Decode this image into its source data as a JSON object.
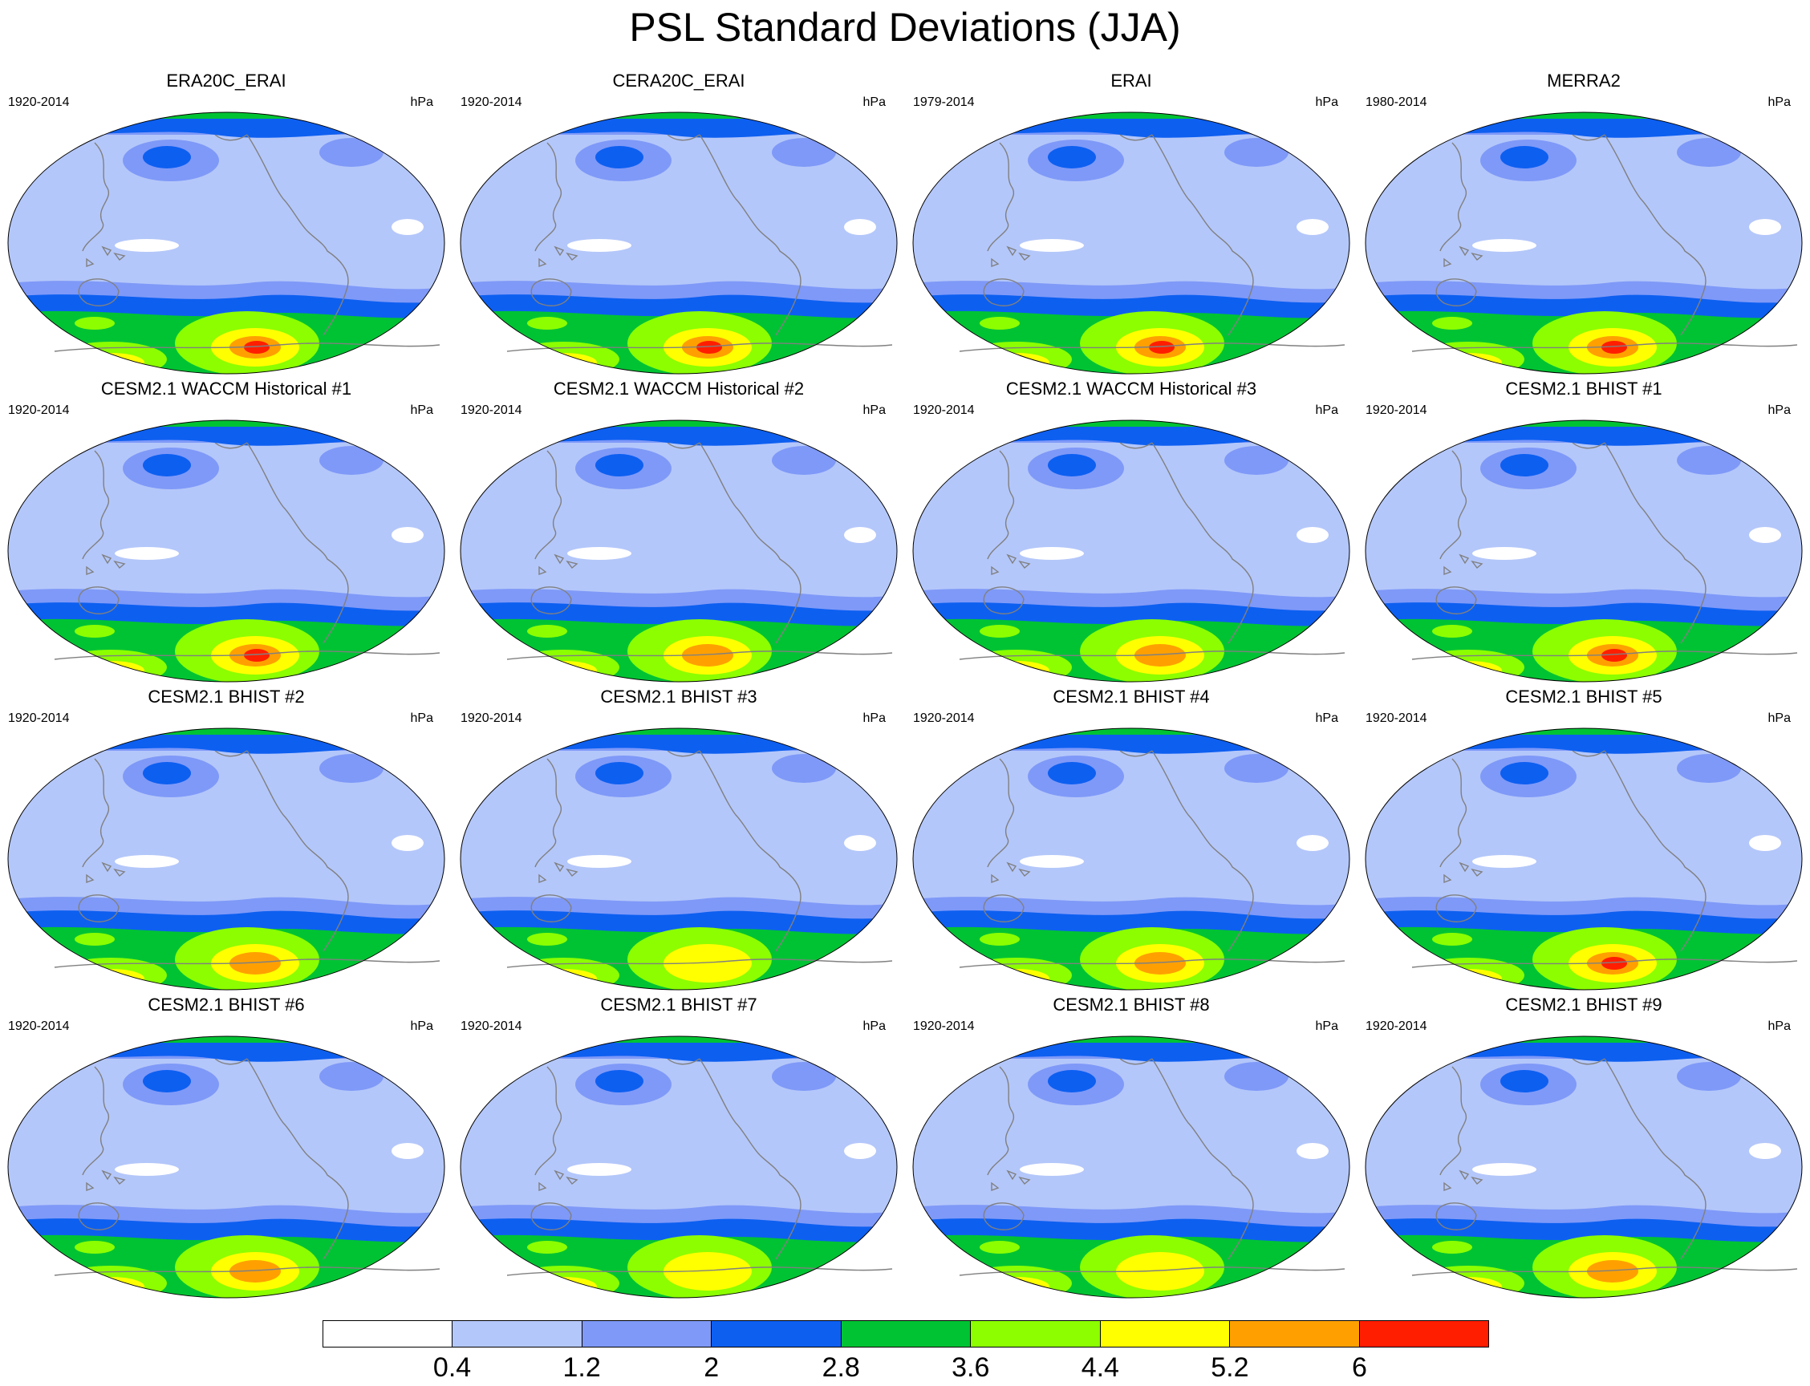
{
  "title": "PSL Standard Deviations (JJA)",
  "colors": {
    "levels": [
      "#ffffff",
      "#b4c7fa",
      "#7f99f8",
      "#0d5ff0",
      "#00c334",
      "#8cfe00",
      "#ffff00",
      "#ffa000",
      "#ff1e00"
    ],
    "coast": "#808080"
  },
  "colorbar": {
    "labels": [
      "0.4",
      "1.2",
      "2",
      "2.8",
      "3.6",
      "4.4",
      "5.2",
      "6"
    ]
  },
  "panels": [
    {
      "title": "ERA20C_ERAI",
      "years": "1920-2014",
      "units": "hPa",
      "peak": 8,
      "arctic": 4
    },
    {
      "title": "CERA20C_ERAI",
      "years": "1920-2014",
      "units": "hPa",
      "peak": 8,
      "arctic": 4
    },
    {
      "title": "ERAI",
      "years": "1979-2014",
      "units": "hPa",
      "peak": 8,
      "arctic": 4
    },
    {
      "title": "MERRA2",
      "years": "1980-2014",
      "units": "hPa",
      "peak": 8,
      "arctic": 4
    },
    {
      "title": "CESM2.1 WACCM Historical #1",
      "years": "1920-2014",
      "units": "hPa",
      "peak": 8,
      "arctic": 4
    },
    {
      "title": "CESM2.1 WACCM Historical #2",
      "years": "1920-2014",
      "units": "hPa",
      "peak": 7,
      "arctic": 4
    },
    {
      "title": "CESM2.1 WACCM Historical #3",
      "years": "1920-2014",
      "units": "hPa",
      "peak": 7,
      "arctic": 4
    },
    {
      "title": "CESM2.1 BHIST #1",
      "years": "1920-2014",
      "units": "hPa",
      "peak": 8,
      "arctic": 4
    },
    {
      "title": "CESM2.1 BHIST #2",
      "years": "1920-2014",
      "units": "hPa",
      "peak": 7,
      "arctic": 4
    },
    {
      "title": "CESM2.1 BHIST #3",
      "years": "1920-2014",
      "units": "hPa",
      "peak": 6,
      "arctic": 4
    },
    {
      "title": "CESM2.1 BHIST #4",
      "years": "1920-2014",
      "units": "hPa",
      "peak": 7,
      "arctic": 4
    },
    {
      "title": "CESM2.1 BHIST #5",
      "years": "1920-2014",
      "units": "hPa",
      "peak": 8,
      "arctic": 4
    },
    {
      "title": "CESM2.1 BHIST #6",
      "years": "1920-2014",
      "units": "hPa",
      "peak": 7,
      "arctic": 4
    },
    {
      "title": "CESM2.1 BHIST #7",
      "years": "1920-2014",
      "units": "hPa",
      "peak": 6,
      "arctic": 4
    },
    {
      "title": "CESM2.1 BHIST #8",
      "years": "1920-2014",
      "units": "hPa",
      "peak": 6,
      "arctic": 4
    },
    {
      "title": "CESM2.1 BHIST #9",
      "years": "1920-2014",
      "units": "hPa",
      "peak": 7,
      "arctic": 4
    }
  ]
}
